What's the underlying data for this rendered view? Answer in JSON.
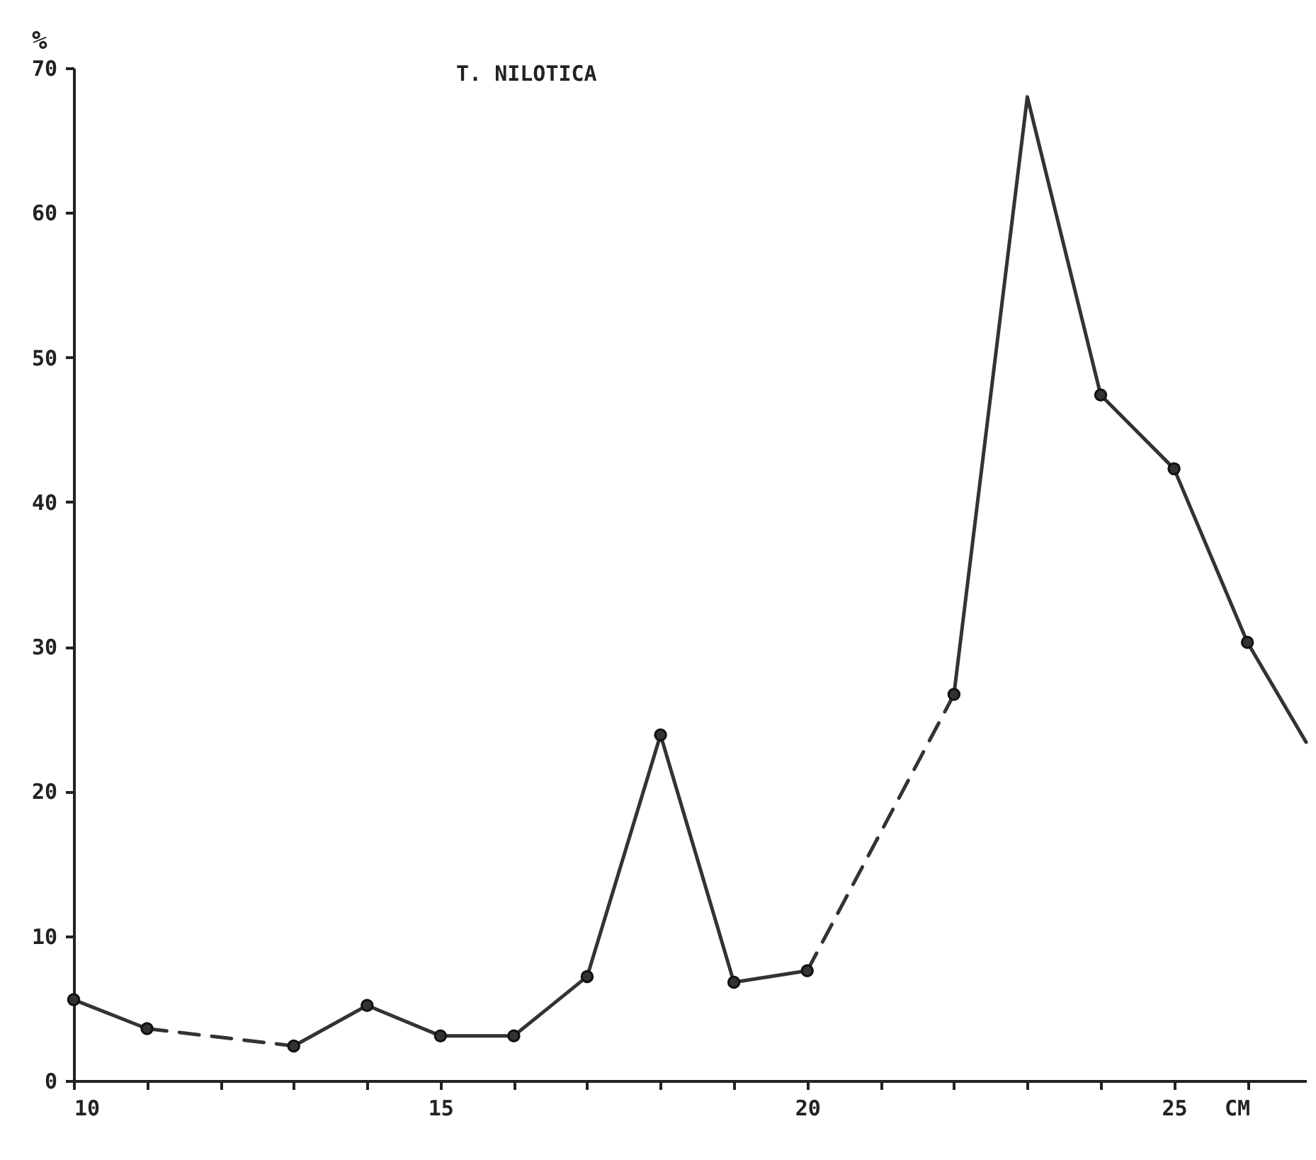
{
  "chart_data": {
    "type": "line",
    "title": "T. NILOTICA",
    "xlabel": "CM",
    "ylabel": "%",
    "xlim": [
      10,
      26.8
    ],
    "ylim": [
      0,
      70
    ],
    "xticks": [
      10,
      {
        "value": 11,
        "label": null
      },
      {
        "value": 12,
        "label": null
      },
      {
        "value": 13,
        "label": null
      },
      {
        "value": 14,
        "label": null
      },
      15,
      {
        "value": 16,
        "label": null
      },
      {
        "value": 17,
        "label": null
      },
      {
        "value": 18,
        "label": null
      },
      {
        "value": 19,
        "label": null
      },
      20,
      {
        "value": 21,
        "label": null
      },
      {
        "value": 22,
        "label": null
      },
      {
        "value": 23,
        "label": null
      },
      {
        "value": 24,
        "label": null
      },
      25,
      {
        "value": 26,
        "label": null
      }
    ],
    "yticks": [
      0,
      10,
      20,
      30,
      40,
      50,
      60,
      70
    ],
    "grid": false,
    "series": [
      {
        "color": "#333333",
        "line_style": "solid",
        "marker": "none",
        "x": [
          10,
          11
        ],
        "values": [
          5.6,
          3.6
        ]
      },
      {
        "color": "#333333",
        "line_style": "dashed",
        "marker": "none",
        "x": [
          11,
          13
        ],
        "values": [
          3.6,
          2.4
        ]
      },
      {
        "color": "#333333",
        "line_style": "solid",
        "marker": "none",
        "x": [
          13,
          14,
          15,
          16,
          17,
          18,
          19,
          20
        ],
        "values": [
          2.4,
          5.2,
          3.1,
          3.1,
          7.2,
          23.9,
          6.8,
          7.6
        ]
      },
      {
        "color": "#333333",
        "line_style": "dashed",
        "marker": "none",
        "x": [
          20,
          22
        ],
        "values": [
          7.6,
          26.7
        ]
      },
      {
        "color": "#333333",
        "line_style": "solid",
        "marker": "none",
        "x": [
          22,
          23,
          24,
          25,
          26,
          26.8
        ],
        "values": [
          26.7,
          68,
          47.4,
          42.3,
          30.3,
          23.4
        ]
      },
      {
        "type": "scatter",
        "color": "#333333",
        "marker": "circle",
        "x": [
          10,
          11,
          13,
          14,
          15,
          16,
          17,
          18,
          19,
          20,
          22,
          24,
          25,
          26
        ],
        "values": [
          5.6,
          3.6,
          2.4,
          5.2,
          3.1,
          3.1,
          7.2,
          23.9,
          6.8,
          7.6,
          26.7,
          47.4,
          42.3,
          30.3
        ]
      }
    ]
  }
}
